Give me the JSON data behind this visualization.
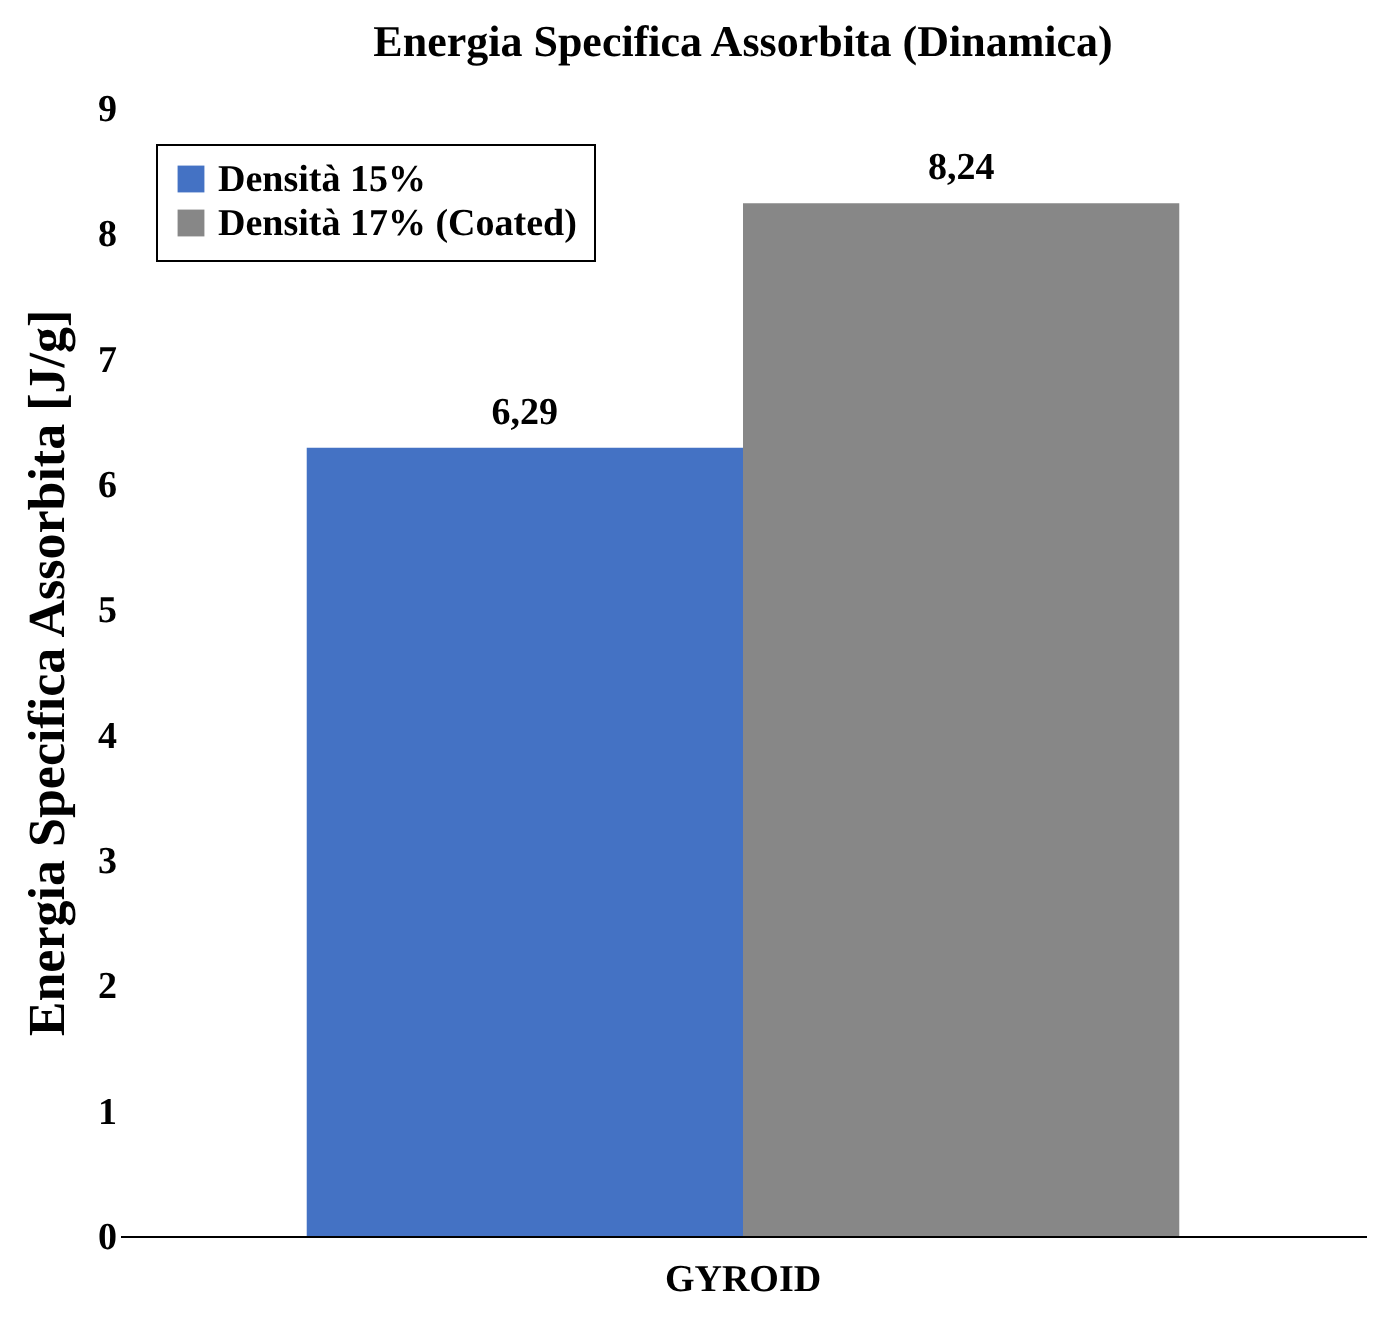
{
  "chart_data": {
    "type": "bar",
    "title": "Energia Specifica Assorbita (Dinamica)",
    "ylabel": "Energia Specifica Assorbita [J/g]",
    "categories": [
      "GYROID"
    ],
    "series": [
      {
        "name": "Densità 15%",
        "color": "#4472c4",
        "values": [
          6.29
        ],
        "value_labels": [
          "6,29"
        ]
      },
      {
        "name": "Densità 17% (Coated)",
        "color": "#878787",
        "values": [
          8.24
        ],
        "value_labels": [
          "8,24"
        ]
      }
    ],
    "ylim": [
      0,
      9
    ],
    "yticks": [
      0,
      1,
      2,
      3,
      4,
      5,
      6,
      7,
      8,
      9
    ],
    "grid": false,
    "legend": "top left"
  }
}
